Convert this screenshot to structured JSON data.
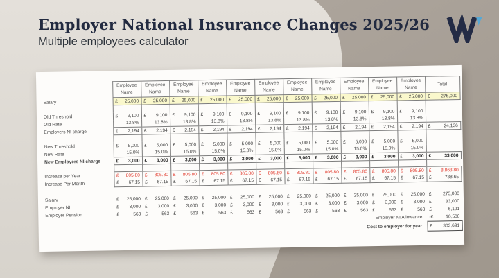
{
  "slide": {
    "title": "Employer National Insurance Changes 2025/26",
    "subtitle": "Multiple employees calculator",
    "logo_letter": "W"
  },
  "colors": {
    "accent_navy": "#232b45",
    "logo_blue": "#55a8d6",
    "highlight_yellow": "#faf8cc",
    "alert_red": "#e23b2e",
    "background_light": "#e1ddd6",
    "background_dark": "#a8a096",
    "card_white": "#fdfcfa"
  },
  "table": {
    "column_headers": [
      "Employee Name",
      "Employee Name",
      "Employee Name",
      "Employee Name",
      "Employee Name",
      "Employee Name",
      "Employee Name",
      "Employee Name",
      "Employee Name",
      "Employee Name",
      "Employee Name",
      "Total"
    ],
    "rows": [
      {
        "id": "salary",
        "label": "Salary",
        "currency": "£",
        "values": [
          "25,000",
          "25,000",
          "25,000",
          "25,000",
          "25,000",
          "25,000",
          "25,000",
          "25,000",
          "25,000",
          "25,000",
          "25,000"
        ],
        "total": "275,000",
        "style": "yellow"
      },
      {
        "id": "spacer1",
        "type": "spacer"
      },
      {
        "id": "old-threshold",
        "label": "Old Threshold",
        "currency": "£",
        "values": [
          "9,100",
          "9,100",
          "9,100",
          "9,100",
          "9,100",
          "9,100",
          "9,100",
          "9,100",
          "9,100",
          "9,100",
          "9,100"
        ]
      },
      {
        "id": "old-rate",
        "label": "Old Rate",
        "values": [
          "13.8%",
          "13.8%",
          "13.8%",
          "13.8%",
          "13.8%",
          "13.8%",
          "13.8%",
          "13.8%",
          "13.8%",
          "13.8%",
          "13.8%"
        ]
      },
      {
        "id": "employers-ni-charge",
        "label": "Employers NI charge",
        "currency": "£",
        "values": [
          "2,194",
          "2,194",
          "2,194",
          "2,194",
          "2,194",
          "2,194",
          "2,194",
          "2,194",
          "2,194",
          "2,194",
          "2,194"
        ],
        "total": "24,136",
        "style": "boxed"
      },
      {
        "id": "spacer2",
        "type": "spacer"
      },
      {
        "id": "new-threshold",
        "label": "New Threshold",
        "currency": "£",
        "values": [
          "5,000",
          "5,000",
          "5,000",
          "5,000",
          "5,000",
          "5,000",
          "5,000",
          "5,000",
          "5,000",
          "5,000",
          "5,000"
        ]
      },
      {
        "id": "new-rate",
        "label": "New Rate",
        "values": [
          "15.0%",
          "15.0%",
          "15.0%",
          "15.0%",
          "15.0%",
          "15.0%",
          "15.0%",
          "15.0%",
          "15.0%",
          "15.0%",
          "15.0%"
        ]
      },
      {
        "id": "new-employers-ni-charge",
        "label": "New Employers NI charge",
        "currency": "£",
        "values": [
          "3,000",
          "3,000",
          "3,000",
          "3,000",
          "3,000",
          "3,000",
          "3,000",
          "3,000",
          "3,000",
          "3,000",
          "3,000"
        ],
        "total": "33,000",
        "style": "boxed bold"
      },
      {
        "id": "spacer3",
        "type": "spacer"
      },
      {
        "id": "increase-per-year",
        "label": "Increase per Year",
        "currency": "£",
        "values": [
          "805.80",
          "805.80",
          "805.80",
          "805.80",
          "805.80",
          "805.80",
          "805.80",
          "805.80",
          "805.80",
          "805.80",
          "805.80"
        ],
        "total": "8,863.80",
        "style": "box-top red"
      },
      {
        "id": "increase-per-month",
        "label": "Increase Per Month",
        "currency": "£",
        "values": [
          "67.15",
          "67.15",
          "67.15",
          "67.15",
          "67.15",
          "67.15",
          "67.15",
          "67.15",
          "67.15",
          "67.15",
          "67.15"
        ],
        "total": "738.65",
        "style": "box-bottom"
      }
    ],
    "summary_rows": [
      {
        "id": "summary-salary",
        "label": "Salary",
        "currency": "£",
        "values": [
          "25,000",
          "25,000",
          "25,000",
          "25,000",
          "25,000",
          "25,000",
          "25,000",
          "25,000",
          "25,000",
          "25,000",
          "25,000"
        ],
        "total": "275,000"
      },
      {
        "id": "summary-employer-ni",
        "label": "Employer NI",
        "currency": "£",
        "values": [
          "3,000",
          "3,000",
          "3,000",
          "3,000",
          "3,000",
          "3,000",
          "3,000",
          "3,000",
          "3,000",
          "3,000",
          "3,000"
        ],
        "total": "33,000"
      },
      {
        "id": "summary-employer-pension",
        "label": "Employer Pension",
        "currency": "£",
        "values": [
          "563",
          "563",
          "563",
          "563",
          "563",
          "563",
          "563",
          "563",
          "563",
          "563",
          "563"
        ],
        "total": "6,191"
      },
      {
        "id": "employer-ni-allowance",
        "label": "Employer NI Allowance",
        "currency": "-£",
        "total": "10,500",
        "align": "right"
      },
      {
        "id": "cost-to-employer",
        "label": "Cost to employer for year",
        "currency": "£",
        "total": "303,691",
        "align": "right",
        "style": "bold boxed"
      }
    ]
  }
}
